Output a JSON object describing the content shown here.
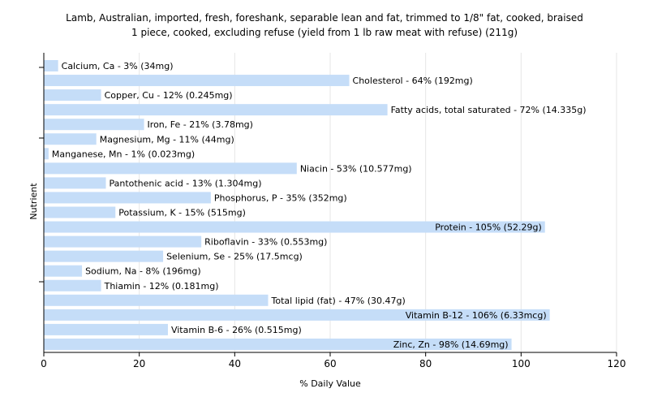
{
  "chart_data": {
    "type": "bar",
    "orientation": "horizontal",
    "title": "Lamb, Australian, imported, fresh, foreshank, separable lean and fat, trimmed to 1/8\" fat, cooked, braised",
    "subtitle": "1 piece, cooked, excluding refuse (yield from 1 lb raw meat with refuse) (211g)",
    "xlabel": "% Daily Value",
    "ylabel": "Nutrient",
    "xlim": [
      0,
      120
    ],
    "xticks": [
      "0",
      "20",
      "40",
      "60",
      "80",
      "100",
      "120"
    ],
    "grid": true,
    "bar_color": "#c5ddf8",
    "categories": [
      "Calcium, Ca",
      "Cholesterol",
      "Copper, Cu",
      "Fatty acids, total saturated",
      "Iron, Fe",
      "Magnesium, Mg",
      "Manganese, Mn",
      "Niacin",
      "Pantothenic acid",
      "Phosphorus, P",
      "Potassium, K",
      "Protein",
      "Riboflavin",
      "Selenium, Se",
      "Sodium, Na",
      "Thiamin",
      "Total lipid (fat)",
      "Vitamin B-12",
      "Vitamin B-6",
      "Zinc, Zn"
    ],
    "values": [
      3,
      64,
      12,
      72,
      21,
      11,
      1,
      53,
      13,
      35,
      15,
      105,
      33,
      25,
      8,
      12,
      47,
      106,
      26,
      98
    ],
    "labels": [
      "Calcium, Ca - 3% (34mg)",
      "Cholesterol - 64% (192mg)",
      "Copper, Cu - 12% (0.245mg)",
      "Fatty acids, total saturated - 72% (14.335g)",
      "Iron, Fe - 21% (3.78mg)",
      "Magnesium, Mg - 11% (44mg)",
      "Manganese, Mn - 1% (0.023mg)",
      "Niacin - 53% (10.577mg)",
      "Pantothenic acid - 13% (1.304mg)",
      "Phosphorus, P - 35% (352mg)",
      "Potassium, K - 15% (515mg)",
      "Protein - 105% (52.29g)",
      "Riboflavin - 33% (0.553mg)",
      "Selenium, Se - 25% (17.5mcg)",
      "Sodium, Na - 8% (196mg)",
      "Thiamin - 12% (0.181mg)",
      "Total lipid (fat) - 47% (30.47g)",
      "Vitamin B-12 - 106% (6.33mcg)",
      "Vitamin B-6 - 26% (0.515mg)",
      "Zinc, Zn - 98% (14.69mg)"
    ]
  }
}
